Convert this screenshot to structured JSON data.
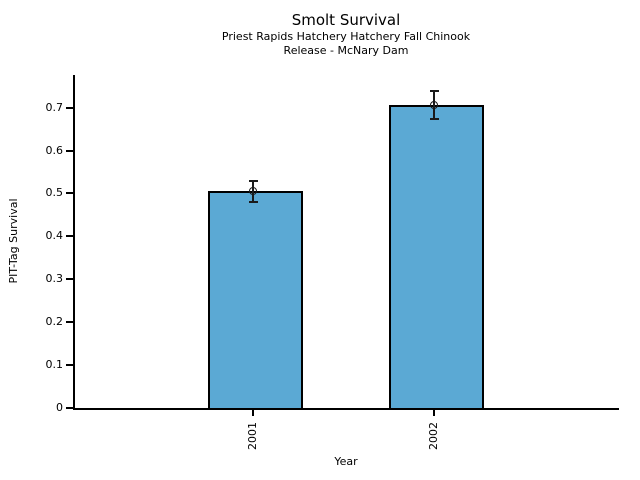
{
  "figure": {
    "background": "#ffffff"
  },
  "chart_data": {
    "type": "bar",
    "title": "Smolt Survival",
    "subtitle_line1": "Priest Rapids Hatchery Hatchery Fall Chinook",
    "subtitle_line2": "Release - McNary Dam",
    "xlabel": "Year",
    "ylabel": "PIT-Tag Survival",
    "categories": [
      "2001",
      "2002"
    ],
    "values": [
      0.505,
      0.705
    ],
    "error_bars": [
      0.027,
      0.035
    ],
    "yticks": [
      0,
      0.1,
      0.2,
      0.3,
      0.4,
      0.5,
      0.6,
      0.7
    ],
    "ytick_labels": [
      "0",
      "0.1",
      "0.2",
      "0.3",
      "0.4",
      "0.5",
      "0.6",
      "0.7"
    ],
    "ylim": [
      0,
      0.776
    ],
    "grid": false,
    "legend": null,
    "bar_color": "#5BA9D4",
    "bar_edge_color": "#000000",
    "error_color": "#1a1a1a",
    "marker": "open-circle"
  }
}
